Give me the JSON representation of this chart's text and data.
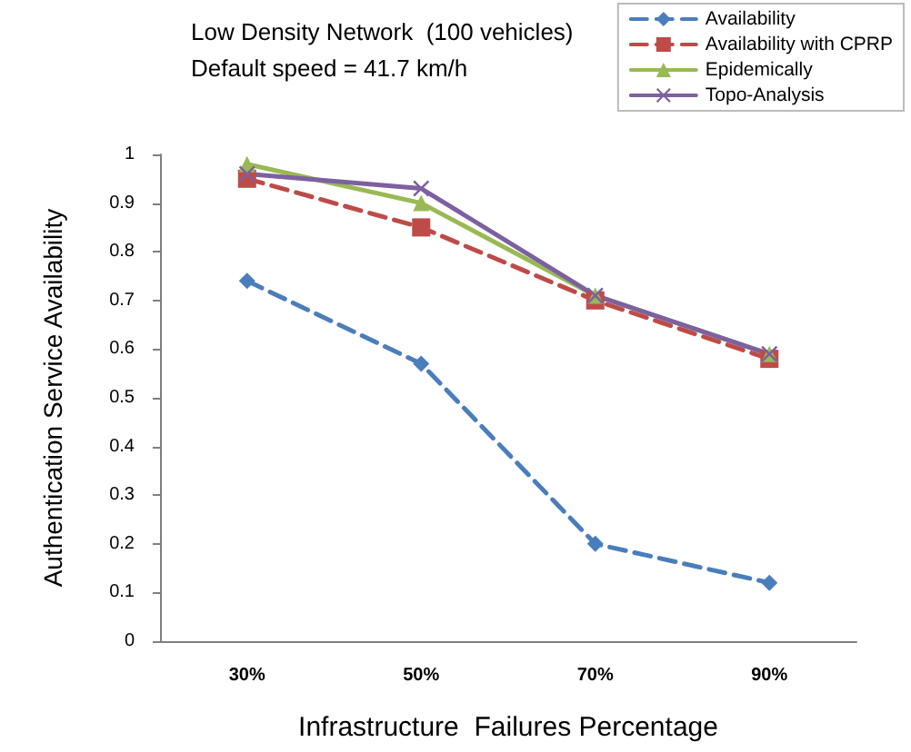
{
  "chart_data": {
    "type": "line",
    "title": "Low Density Network  (100 vehicles)",
    "subtitle": "Default speed = 41.7 km/h",
    "xlabel": "Infrastructure  Failures Percentage",
    "ylabel": "Authentication Service Availability",
    "categories": [
      "30%",
      "50%",
      "70%",
      "90%"
    ],
    "series": [
      {
        "name": "Availability",
        "color": "#4a7ebb",
        "values": [
          0.74,
          0.57,
          0.2,
          0.12
        ],
        "marker": "diamond",
        "line_style": "dashed"
      },
      {
        "name": "Availability with CPRP",
        "color": "#be4b48",
        "values": [
          0.95,
          0.85,
          0.7,
          0.58
        ],
        "marker": "square",
        "line_style": "dashed"
      },
      {
        "name": "Epidemically",
        "color": "#98b954",
        "values": [
          0.98,
          0.9,
          0.71,
          0.59
        ],
        "marker": "triangle",
        "line_style": "solid"
      },
      {
        "name": "Topo-Analysis",
        "color": "#7d60a0",
        "values": [
          0.96,
          0.93,
          0.71,
          0.59
        ],
        "marker": "cross",
        "line_style": "solid"
      }
    ],
    "ylim": [
      0,
      1
    ],
    "yticks": [
      0,
      0.1,
      0.2,
      0.3,
      0.4,
      0.5,
      0.6,
      0.7,
      0.8,
      0.9,
      1
    ],
    "grid": false,
    "legend": "top right"
  }
}
